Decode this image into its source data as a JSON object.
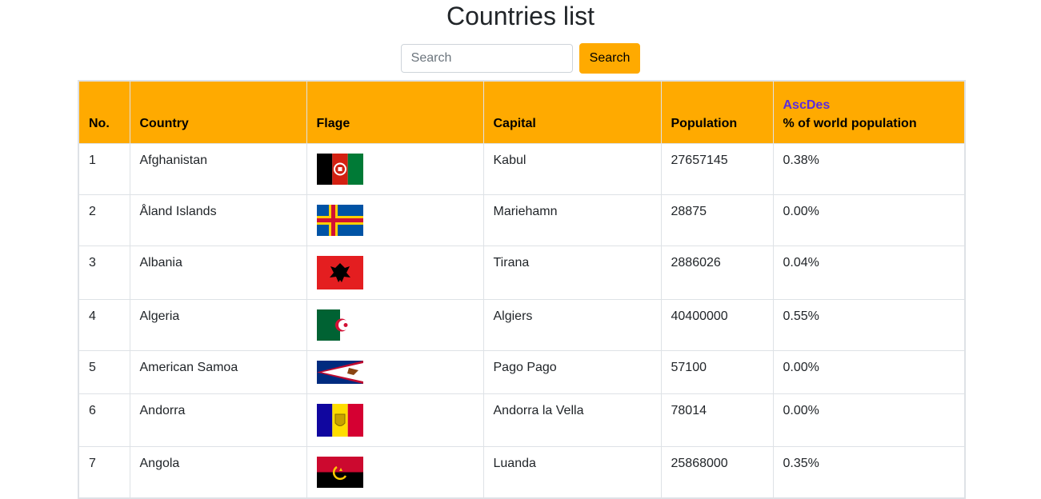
{
  "page": {
    "title": "Countries list"
  },
  "search": {
    "placeholder": "Search",
    "value": "",
    "button_label": "Search"
  },
  "table": {
    "headers": {
      "no": "No.",
      "country": "Country",
      "flag": "Flage",
      "capital": "Capital",
      "population": "Population",
      "sort_asc": "Asc",
      "sort_des": "Des",
      "percent": "% of world population"
    },
    "rows": [
      {
        "no": "1",
        "country": "Afghanistan",
        "flag_icon": "afghanistan-flag-icon",
        "capital": "Kabul",
        "population": "27657145",
        "percent": "0.38%"
      },
      {
        "no": "2",
        "country": "Åland Islands",
        "flag_icon": "aland-islands-flag-icon",
        "capital": "Mariehamn",
        "population": "28875",
        "percent": "0.00%"
      },
      {
        "no": "3",
        "country": "Albania",
        "flag_icon": "albania-flag-icon",
        "capital": "Tirana",
        "population": "2886026",
        "percent": "0.04%"
      },
      {
        "no": "4",
        "country": "Algeria",
        "flag_icon": "algeria-flag-icon",
        "capital": "Algiers",
        "population": "40400000",
        "percent": "0.55%"
      },
      {
        "no": "5",
        "country": "American Samoa",
        "flag_icon": "american-samoa-flag-icon",
        "capital": "Pago Pago",
        "population": "57100",
        "percent": "0.00%"
      },
      {
        "no": "6",
        "country": "Andorra",
        "flag_icon": "andorra-flag-icon",
        "capital": "Andorra la Vella",
        "population": "78014",
        "percent": "0.00%"
      },
      {
        "no": "7",
        "country": "Angola",
        "flag_icon": "angola-flag-icon",
        "capital": "Luanda",
        "population": "25868000",
        "percent": "0.35%"
      }
    ]
  },
  "colors": {
    "header_bg": "#ffaa00",
    "button_bg": "#ffaa00",
    "sort_link": "#5b2cdf"
  }
}
